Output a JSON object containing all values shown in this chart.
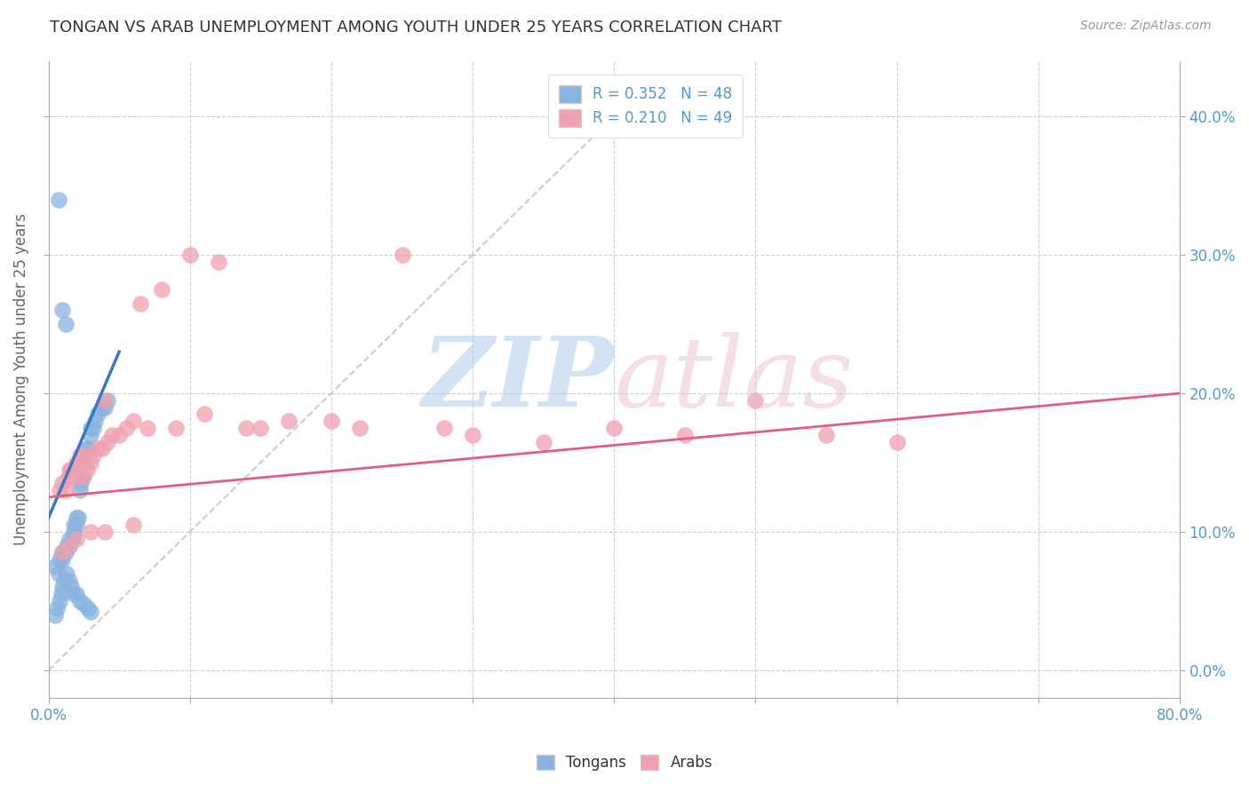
{
  "title": "TONGAN VS ARAB UNEMPLOYMENT AMONG YOUTH UNDER 25 YEARS CORRELATION CHART",
  "source": "Source: ZipAtlas.com",
  "ylabel": "Unemployment Among Youth under 25 years",
  "xlim": [
    0.0,
    0.8
  ],
  "ylim": [
    -0.02,
    0.44
  ],
  "xticks": [
    0.0,
    0.1,
    0.2,
    0.3,
    0.4,
    0.5,
    0.6,
    0.7,
    0.8
  ],
  "yticks": [
    0.0,
    0.1,
    0.2,
    0.3,
    0.4
  ],
  "right_ytick_labels": [
    "0.0%",
    "10.0%",
    "20.0%",
    "30.0%",
    "40.0%"
  ],
  "x_end_labels": [
    "0.0%",
    "80.0%"
  ],
  "tongan_R": 0.352,
  "tongan_N": 48,
  "arab_R": 0.21,
  "arab_N": 49,
  "tongan_color": "#8ab4e0",
  "arab_color": "#f0a0b0",
  "tongan_line_color": "#3a78c0",
  "arab_line_color": "#e06080",
  "diagonal_color": "#c0c0c0",
  "background_color": "#ffffff",
  "grid_color": "#d0d0d0",
  "tick_color": "#5599cc",
  "tongan_x": [
    0.005,
    0.007,
    0.008,
    0.01,
    0.01,
    0.012,
    0.013,
    0.015,
    0.015,
    0.017,
    0.018,
    0.018,
    0.02,
    0.02,
    0.021,
    0.022,
    0.023,
    0.024,
    0.025,
    0.025,
    0.027,
    0.028,
    0.03,
    0.03,
    0.032,
    0.033,
    0.035,
    0.038,
    0.04,
    0.042,
    0.005,
    0.006,
    0.008,
    0.009,
    0.01,
    0.011,
    0.013,
    0.015,
    0.016,
    0.018,
    0.02,
    0.022,
    0.025,
    0.028,
    0.03,
    0.01,
    0.012,
    0.007
  ],
  "tongan_y": [
    0.075,
    0.07,
    0.08,
    0.08,
    0.085,
    0.085,
    0.09,
    0.09,
    0.095,
    0.095,
    0.1,
    0.105,
    0.105,
    0.11,
    0.11,
    0.13,
    0.135,
    0.14,
    0.15,
    0.155,
    0.16,
    0.16,
    0.17,
    0.175,
    0.175,
    0.18,
    0.185,
    0.19,
    0.19,
    0.195,
    0.04,
    0.045,
    0.05,
    0.055,
    0.06,
    0.065,
    0.07,
    0.065,
    0.06,
    0.055,
    0.055,
    0.05,
    0.048,
    0.045,
    0.042,
    0.26,
    0.25,
    0.34
  ],
  "arab_x": [
    0.008,
    0.01,
    0.012,
    0.014,
    0.015,
    0.016,
    0.018,
    0.02,
    0.022,
    0.025,
    0.025,
    0.027,
    0.03,
    0.032,
    0.035,
    0.038,
    0.04,
    0.042,
    0.045,
    0.05,
    0.055,
    0.06,
    0.065,
    0.07,
    0.08,
    0.09,
    0.1,
    0.11,
    0.12,
    0.14,
    0.15,
    0.17,
    0.2,
    0.22,
    0.25,
    0.28,
    0.3,
    0.35,
    0.4,
    0.45,
    0.5,
    0.55,
    0.6,
    0.01,
    0.015,
    0.02,
    0.03,
    0.04,
    0.06
  ],
  "arab_y": [
    0.13,
    0.135,
    0.13,
    0.14,
    0.145,
    0.145,
    0.14,
    0.15,
    0.155,
    0.155,
    0.14,
    0.145,
    0.15,
    0.155,
    0.16,
    0.16,
    0.195,
    0.165,
    0.17,
    0.17,
    0.175,
    0.18,
    0.265,
    0.175,
    0.275,
    0.175,
    0.3,
    0.185,
    0.295,
    0.175,
    0.175,
    0.18,
    0.18,
    0.175,
    0.3,
    0.175,
    0.17,
    0.165,
    0.175,
    0.17,
    0.195,
    0.17,
    0.165,
    0.085,
    0.09,
    0.095,
    0.1,
    0.1,
    0.105
  ],
  "tongan_line_x": [
    0.0,
    0.05
  ],
  "tongan_line_y": [
    0.11,
    0.23
  ],
  "arab_line_x": [
    0.0,
    0.8
  ],
  "arab_line_y": [
    0.125,
    0.2
  ]
}
